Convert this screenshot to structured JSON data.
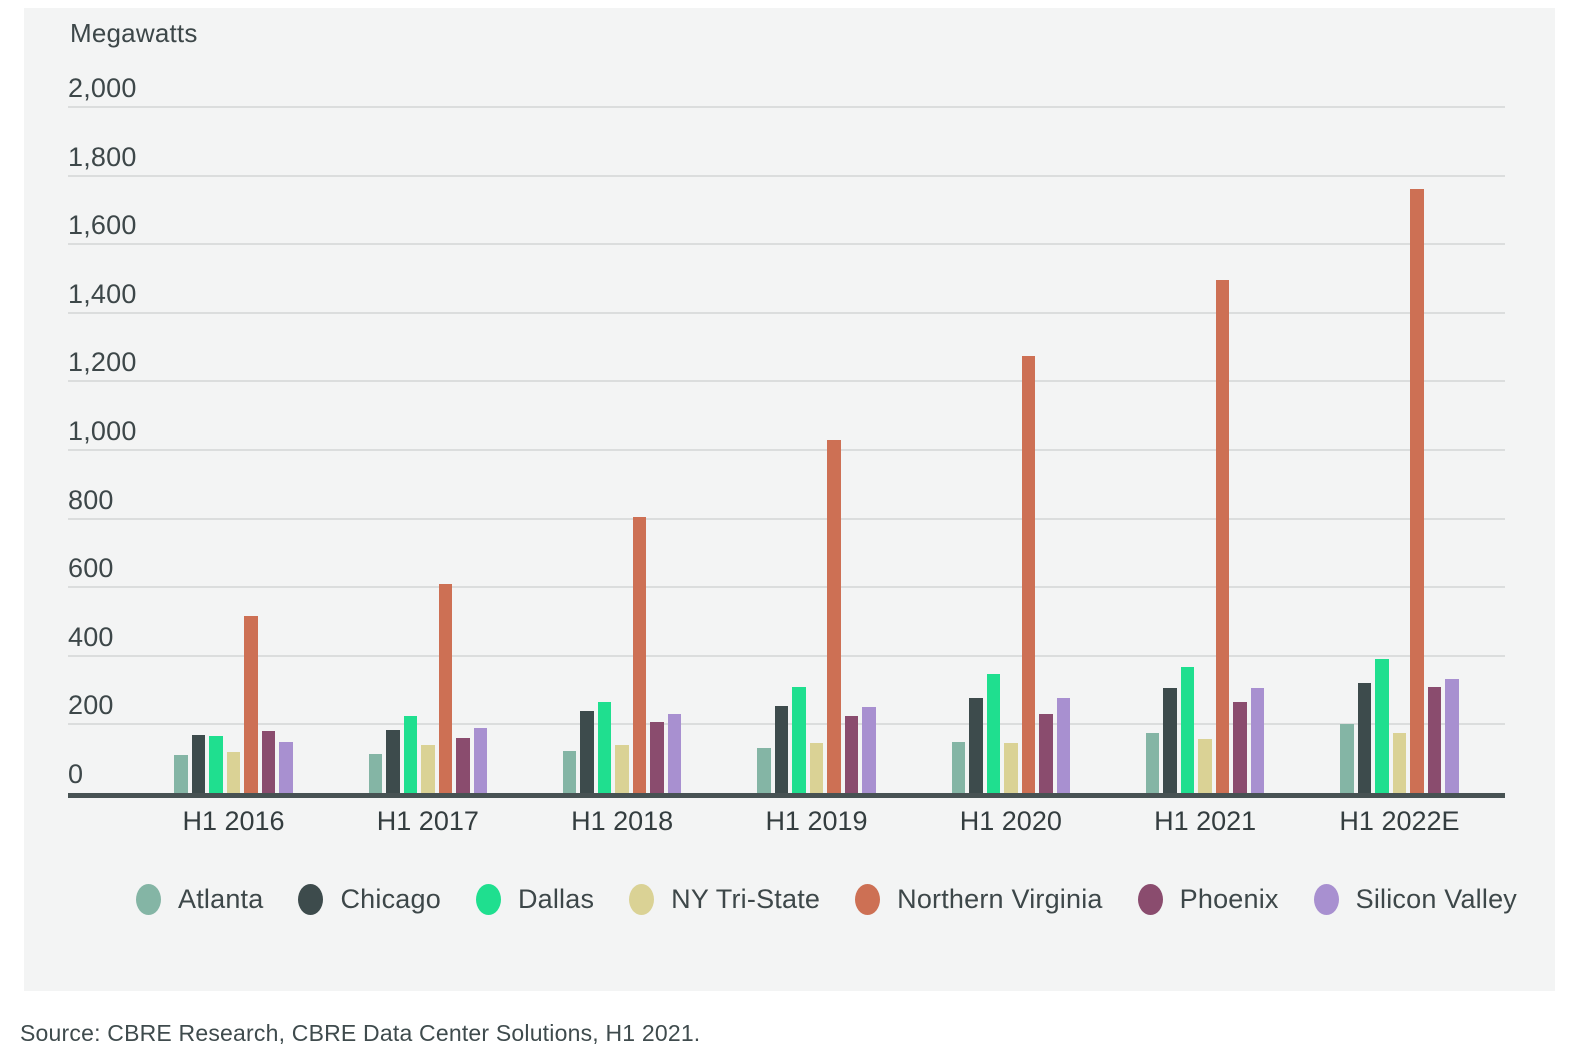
{
  "chart_data": {
    "type": "bar",
    "title": "Megawatts",
    "ylabel": "Megawatts",
    "xlabel": "",
    "categories": [
      "H1 2016",
      "H1 2017",
      "H1 2018",
      "H1 2019",
      "H1 2020",
      "H1 2021",
      "H1 2022E"
    ],
    "series": [
      {
        "name": "Atlanta",
        "color": "#84b5a5",
        "values": [
          110,
          115,
          122,
          130,
          148,
          175,
          200
        ]
      },
      {
        "name": "Chicago",
        "color": "#3d4b4c",
        "values": [
          170,
          185,
          240,
          255,
          278,
          305,
          322
        ]
      },
      {
        "name": "Dallas",
        "color": "#1fdf8f",
        "values": [
          165,
          225,
          265,
          310,
          348,
          368,
          390
        ]
      },
      {
        "name": "NY Tri-State",
        "color": "#dad295",
        "values": [
          120,
          140,
          140,
          145,
          145,
          158,
          175
        ]
      },
      {
        "name": "Northern Virginia",
        "color": "#cd7054",
        "values": [
          515,
          610,
          805,
          1030,
          1275,
          1495,
          1760
        ]
      },
      {
        "name": "Phoenix",
        "color": "#8a4c6e",
        "values": [
          180,
          160,
          208,
          225,
          230,
          265,
          310
        ]
      },
      {
        "name": "Silicon Valley",
        "color": "#a890d0",
        "values": [
          148,
          190,
          230,
          250,
          278,
          305,
          332
        ]
      }
    ],
    "ylim": [
      0,
      2000
    ],
    "ytick_step": 200,
    "grid": true,
    "legend_position": "bottom"
  },
  "source_note": "Source: CBRE Research, CBRE Data Center Solutions, H1 2021."
}
